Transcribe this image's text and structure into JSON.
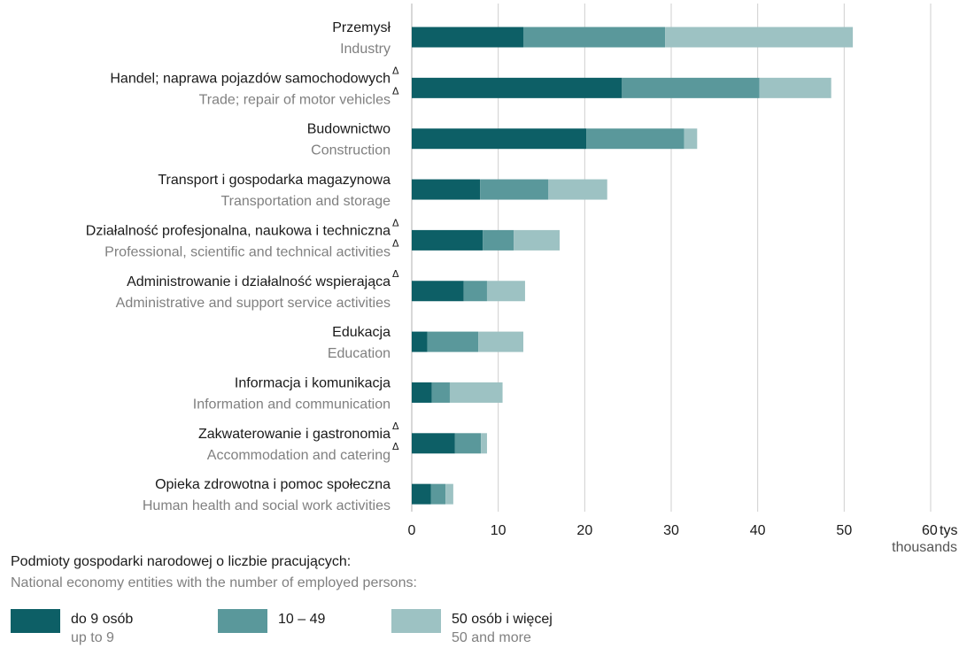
{
  "chart_data": {
    "type": "bar",
    "orientation": "horizontal",
    "stacked": true,
    "categories": [
      {
        "pl": "Przemysł",
        "en": "Industry",
        "delta_pl": false,
        "delta_en": false
      },
      {
        "pl": "Handel; naprawa pojazdów samochodowych",
        "en": "Trade; repair of motor vehicles",
        "delta_pl": true,
        "delta_en": true
      },
      {
        "pl": "Budownictwo",
        "en": "Construction",
        "delta_pl": false,
        "delta_en": false
      },
      {
        "pl": "Transport i gospodarka magazynowa",
        "en": "Transportation and storage",
        "delta_pl": false,
        "delta_en": false
      },
      {
        "pl": "Działalność profesjonalna, naukowa i techniczna",
        "en": "Professional, scientific and technical activities",
        "delta_pl": true,
        "delta_en": true
      },
      {
        "pl": "Administrowanie i działalność wspierająca",
        "en": "Administrative and support service activities",
        "delta_pl": true,
        "delta_en": false
      },
      {
        "pl": "Edukacja",
        "en": "Education",
        "delta_pl": false,
        "delta_en": false
      },
      {
        "pl": "Informacja i komunikacja",
        "en": "Information and communication",
        "delta_pl": false,
        "delta_en": false
      },
      {
        "pl": "Zakwaterowanie i gastronomia",
        "en": "Accommodation and catering",
        "delta_pl": true,
        "delta_en": true
      },
      {
        "pl": "Opieka zdrowotna i pomoc społeczna",
        "en": "Human health and social work activities",
        "delta_pl": false,
        "delta_en": false
      }
    ],
    "delta_symbol": "Δ",
    "series": [
      {
        "name": "do 9 osób",
        "name_en": "up to 9",
        "color": "#0d5f66",
        "values": [
          12.9,
          24.3,
          20.2,
          7.9,
          8.2,
          6.0,
          1.8,
          2.3,
          5.0,
          2.2
        ]
      },
      {
        "name": "10 – 49",
        "name_en": "",
        "color": "#5a989b",
        "values": [
          16.4,
          15.9,
          11.3,
          7.9,
          3.6,
          2.7,
          5.9,
          2.1,
          3.0,
          1.7
        ]
      },
      {
        "name": "50 osób i więcej",
        "name_en": "50 and more",
        "color": "#9dc2c3",
        "values": [
          21.7,
          8.3,
          1.5,
          6.8,
          5.3,
          4.4,
          5.2,
          6.1,
          0.7,
          0.9
        ]
      }
    ],
    "xlim": [
      0,
      60
    ],
    "xticks": [
      0,
      10,
      20,
      30,
      40,
      50,
      60
    ],
    "x_unit_pl": "tys.",
    "x_unit_en": "thousands",
    "grid": true,
    "legend_position": "bottom",
    "legend_title_pl": "Podmioty gospodarki narodowej o liczbie pracujących:",
    "legend_title_en": "National economy entities with the number of employed persons:"
  }
}
